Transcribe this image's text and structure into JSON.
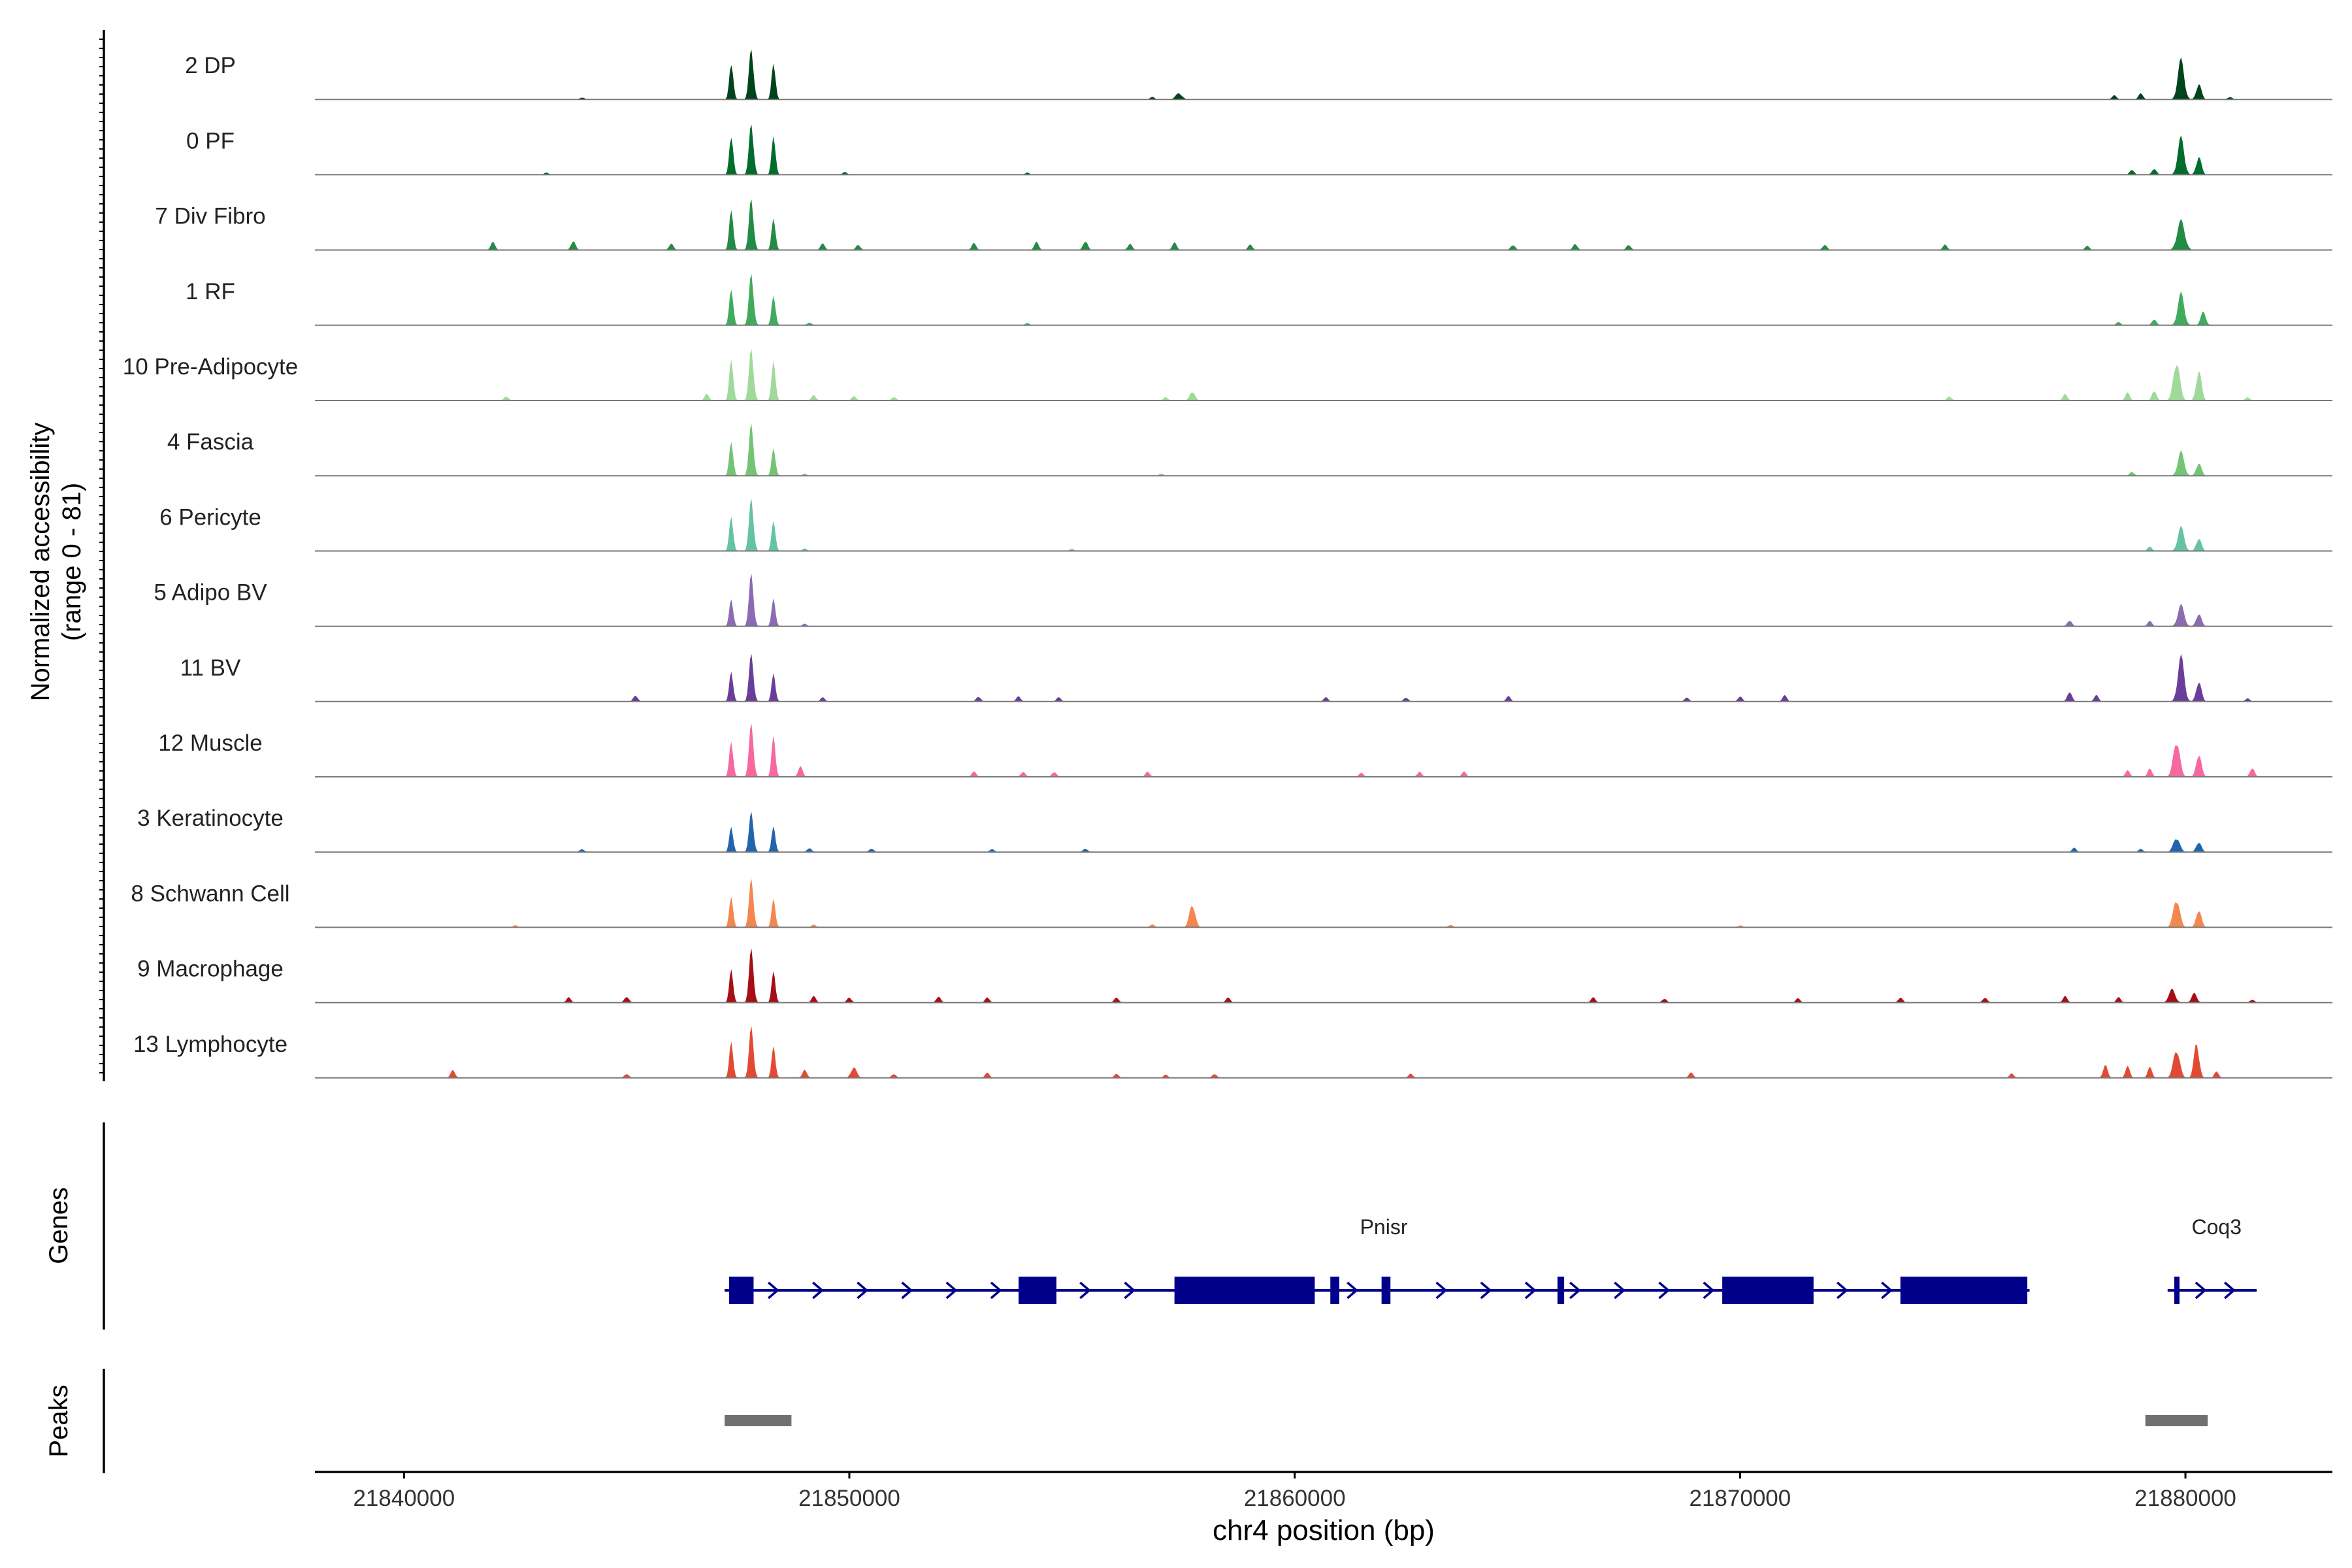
{
  "chart_data": {
    "type": "area",
    "panels": {
      "accessibility": {
        "ylabel_line1": "Normalized accessibility",
        "ylabel_line2": "(range 0 - 81)",
        "ylim": [
          0,
          81
        ]
      },
      "genes": {
        "label": "Genes"
      },
      "peaks": {
        "label": "Peaks"
      }
    },
    "xlabel": "chr4 position (bp)",
    "xlim": [
      21838000,
      21883300
    ],
    "xticks": [
      {
        "value": 21840000,
        "label": "21840000"
      },
      {
        "value": 21850000,
        "label": "21850000"
      },
      {
        "value": 21860000,
        "label": "21860000"
      },
      {
        "value": 21870000,
        "label": "21870000"
      },
      {
        "value": 21880000,
        "label": "21880000"
      }
    ],
    "series": [
      {
        "name": "2 DP",
        "color": "#00441b",
        "peaks": [
          [
            21847350,
            0.75,
            60
          ],
          [
            21847800,
            1.0,
            70
          ],
          [
            21848300,
            0.75,
            60
          ],
          [
            21857400,
            0.12,
            100
          ],
          [
            21879900,
            0.75,
            100
          ],
          [
            21880300,
            0.3,
            80
          ]
        ],
        "bumps": [
          [
            21844000,
            0.04
          ],
          [
            21856800,
            0.05
          ],
          [
            21878400,
            0.08
          ],
          [
            21879000,
            0.12
          ],
          [
            21881000,
            0.05
          ]
        ]
      },
      {
        "name": "0 PF",
        "color": "#006d2c",
        "peaks": [
          [
            21847350,
            0.8,
            60
          ],
          [
            21847800,
            1.0,
            70
          ],
          [
            21848300,
            0.8,
            60
          ],
          [
            21879900,
            0.7,
            100
          ],
          [
            21880300,
            0.35,
            80
          ]
        ],
        "bumps": [
          [
            21843200,
            0.04
          ],
          [
            21849900,
            0.05
          ],
          [
            21854000,
            0.04
          ],
          [
            21878800,
            0.1
          ],
          [
            21879300,
            0.12
          ]
        ]
      },
      {
        "name": "7 Div Fibro",
        "color": "#238b45",
        "peaks": [
          [
            21847350,
            0.85,
            60
          ],
          [
            21847800,
            1.0,
            70
          ],
          [
            21848300,
            0.65,
            60
          ],
          [
            21879900,
            0.55,
            120
          ]
        ],
        "bumps": [
          [
            21842000,
            0.15
          ],
          [
            21843800,
            0.18
          ],
          [
            21846000,
            0.12
          ],
          [
            21849400,
            0.12
          ],
          [
            21850200,
            0.1
          ],
          [
            21852800,
            0.13
          ],
          [
            21854200,
            0.15
          ],
          [
            21855300,
            0.18
          ],
          [
            21856300,
            0.12
          ],
          [
            21857300,
            0.14
          ],
          [
            21859000,
            0.1
          ],
          [
            21864900,
            0.1
          ],
          [
            21866300,
            0.12
          ],
          [
            21867500,
            0.1
          ],
          [
            21871900,
            0.1
          ],
          [
            21874600,
            0.1
          ],
          [
            21877800,
            0.08
          ]
        ]
      },
      {
        "name": "1 RF",
        "color": "#41ab5d",
        "peaks": [
          [
            21847350,
            0.75,
            60
          ],
          [
            21847800,
            1.0,
            70
          ],
          [
            21848300,
            0.6,
            60
          ],
          [
            21879900,
            0.6,
            100
          ],
          [
            21880400,
            0.25,
            80
          ]
        ],
        "bumps": [
          [
            21849100,
            0.05
          ],
          [
            21854000,
            0.04
          ],
          [
            21878500,
            0.06
          ],
          [
            21879300,
            0.12
          ]
        ]
      },
      {
        "name": "10 Pre-Adipocyte",
        "color": "#a1d99b",
        "peaks": [
          [
            21847350,
            0.85,
            60
          ],
          [
            21847800,
            1.0,
            70
          ],
          [
            21848300,
            0.8,
            60
          ],
          [
            21857700,
            0.18,
            80
          ],
          [
            21879800,
            0.75,
            100
          ],
          [
            21880300,
            0.6,
            80
          ]
        ],
        "bumps": [
          [
            21842300,
            0.08
          ],
          [
            21846800,
            0.12
          ],
          [
            21849200,
            0.1
          ],
          [
            21850100,
            0.08
          ],
          [
            21851000,
            0.07
          ],
          [
            21857100,
            0.06
          ],
          [
            21874700,
            0.08
          ],
          [
            21877300,
            0.12
          ],
          [
            21878700,
            0.15
          ],
          [
            21879300,
            0.2
          ],
          [
            21881400,
            0.06
          ]
        ]
      },
      {
        "name": "4 Fascia",
        "color": "#74c476",
        "peaks": [
          [
            21847350,
            0.7,
            60
          ],
          [
            21847800,
            1.0,
            70
          ],
          [
            21848300,
            0.55,
            60
          ],
          [
            21879900,
            0.45,
            100
          ],
          [
            21880300,
            0.25,
            80
          ]
        ],
        "bumps": [
          [
            21849000,
            0.04
          ],
          [
            21857000,
            0.04
          ],
          [
            21878800,
            0.08
          ]
        ]
      },
      {
        "name": "6 Pericyte",
        "color": "#66c2a4",
        "peaks": [
          [
            21847350,
            0.7,
            60
          ],
          [
            21847800,
            1.0,
            70
          ],
          [
            21848300,
            0.6,
            60
          ],
          [
            21879900,
            0.45,
            100
          ],
          [
            21880300,
            0.25,
            80
          ]
        ],
        "bumps": [
          [
            21849000,
            0.05
          ],
          [
            21855000,
            0.04
          ],
          [
            21879200,
            0.08
          ]
        ]
      },
      {
        "name": "5 Adipo BV",
        "color": "#8c6bb1",
        "peaks": [
          [
            21847350,
            0.55,
            60
          ],
          [
            21847800,
            1.0,
            70
          ],
          [
            21848300,
            0.55,
            60
          ],
          [
            21879900,
            0.4,
            100
          ],
          [
            21880300,
            0.25,
            80
          ]
        ],
        "bumps": [
          [
            21849000,
            0.05
          ],
          [
            21877400,
            0.12
          ],
          [
            21879200,
            0.1
          ]
        ]
      },
      {
        "name": "11 BV",
        "color": "#6a3d9a",
        "peaks": [
          [
            21847350,
            0.6,
            60
          ],
          [
            21847800,
            0.9,
            70
          ],
          [
            21848300,
            0.55,
            60
          ],
          [
            21879900,
            0.85,
            100
          ],
          [
            21880300,
            0.4,
            80
          ]
        ],
        "bumps": [
          [
            21845200,
            0.12
          ],
          [
            21849400,
            0.08
          ],
          [
            21852900,
            0.1
          ],
          [
            21853800,
            0.1
          ],
          [
            21854700,
            0.08
          ],
          [
            21860700,
            0.08
          ],
          [
            21862500,
            0.08
          ],
          [
            21864800,
            0.1
          ],
          [
            21868800,
            0.08
          ],
          [
            21870000,
            0.1
          ],
          [
            21871000,
            0.12
          ],
          [
            21877400,
            0.2
          ],
          [
            21878000,
            0.12
          ],
          [
            21881400,
            0.06
          ]
        ]
      },
      {
        "name": "12 Muscle",
        "color": "#f768a1",
        "peaks": [
          [
            21847350,
            0.7,
            60
          ],
          [
            21847800,
            1.0,
            70
          ],
          [
            21848300,
            0.8,
            60
          ],
          [
            21879800,
            0.7,
            100
          ],
          [
            21880300,
            0.45,
            80
          ]
        ],
        "bumps": [
          [
            21848900,
            0.2
          ],
          [
            21852800,
            0.1
          ],
          [
            21853900,
            0.1
          ],
          [
            21854600,
            0.1
          ],
          [
            21856700,
            0.1
          ],
          [
            21861500,
            0.08
          ],
          [
            21862800,
            0.1
          ],
          [
            21863800,
            0.1
          ],
          [
            21878700,
            0.12
          ],
          [
            21879200,
            0.15
          ],
          [
            21881500,
            0.18
          ]
        ]
      },
      {
        "name": "3 Keratinocyte",
        "color": "#2166ac",
        "peaks": [
          [
            21847350,
            0.5,
            60
          ],
          [
            21847800,
            0.75,
            70
          ],
          [
            21848300,
            0.5,
            60
          ],
          [
            21879800,
            0.28,
            100
          ],
          [
            21880300,
            0.2,
            80
          ]
        ],
        "bumps": [
          [
            21844000,
            0.06
          ],
          [
            21849100,
            0.08
          ],
          [
            21850500,
            0.07
          ],
          [
            21853200,
            0.06
          ],
          [
            21855300,
            0.07
          ],
          [
            21877500,
            0.08
          ],
          [
            21879000,
            0.06
          ]
        ]
      },
      {
        "name": "8 Schwann Cell",
        "color": "#f4874f",
        "peaks": [
          [
            21847350,
            0.6,
            60
          ],
          [
            21847800,
            0.9,
            70
          ],
          [
            21848300,
            0.55,
            60
          ],
          [
            21857700,
            0.45,
            90
          ],
          [
            21879800,
            0.55,
            100
          ],
          [
            21880300,
            0.35,
            80
          ]
        ],
        "bumps": [
          [
            21842500,
            0.04
          ],
          [
            21849200,
            0.05
          ],
          [
            21856800,
            0.06
          ],
          [
            21863500,
            0.05
          ],
          [
            21870000,
            0.04
          ]
        ]
      },
      {
        "name": "9 Macrophage",
        "color": "#a50f15",
        "peaks": [
          [
            21847350,
            0.65,
            60
          ],
          [
            21847800,
            1.0,
            70
          ],
          [
            21848300,
            0.6,
            60
          ],
          [
            21879700,
            0.25,
            100
          ],
          [
            21880200,
            0.18,
            80
          ]
        ],
        "bumps": [
          [
            21843700,
            0.1
          ],
          [
            21845000,
            0.12
          ],
          [
            21849200,
            0.12
          ],
          [
            21850000,
            0.1
          ],
          [
            21852000,
            0.12
          ],
          [
            21853100,
            0.1
          ],
          [
            21856000,
            0.1
          ],
          [
            21858500,
            0.1
          ],
          [
            21866700,
            0.1
          ],
          [
            21868300,
            0.08
          ],
          [
            21871300,
            0.08
          ],
          [
            21873600,
            0.1
          ],
          [
            21875500,
            0.1
          ],
          [
            21877300,
            0.12
          ],
          [
            21878500,
            0.1
          ],
          [
            21881500,
            0.06
          ]
        ]
      },
      {
        "name": "13 Lymphocyte",
        "color": "#e34a33",
        "peaks": [
          [
            21847350,
            0.7,
            60
          ],
          [
            21847800,
            0.95,
            70
          ],
          [
            21848300,
            0.6,
            60
          ],
          [
            21850100,
            0.2,
            90
          ],
          [
            21879800,
            0.55,
            100
          ],
          [
            21880250,
            0.68,
            80
          ]
        ],
        "bumps": [
          [
            21841100,
            0.15
          ],
          [
            21845000,
            0.08
          ],
          [
            21849000,
            0.15
          ],
          [
            21851000,
            0.08
          ],
          [
            21853100,
            0.1
          ],
          [
            21856000,
            0.08
          ],
          [
            21857100,
            0.06
          ],
          [
            21858200,
            0.08
          ],
          [
            21862600,
            0.08
          ],
          [
            21868900,
            0.1
          ],
          [
            21876100,
            0.08
          ],
          [
            21878200,
            0.25
          ],
          [
            21878700,
            0.22
          ],
          [
            21879200,
            0.2
          ],
          [
            21880700,
            0.12
          ]
        ]
      }
    ],
    "genes": [
      {
        "name": "Pnisr",
        "label_x": 21862000,
        "start": 21847200,
        "end": 21876500,
        "exons": [
          [
            21847300,
            21847850
          ],
          [
            21853800,
            21854650
          ],
          [
            21857300,
            21860450
          ],
          [
            21860800,
            21861000
          ],
          [
            21861950,
            21862150
          ],
          [
            21865900,
            21866050
          ],
          [
            21869600,
            21871650
          ],
          [
            21873600,
            21876450
          ]
        ]
      },
      {
        "name": "Coq3",
        "label_x": 21880700,
        "start": 21879600,
        "end": 21881600,
        "exons": [
          [
            21879750,
            21879850
          ]
        ]
      }
    ],
    "peaks": [
      [
        21847200,
        21848700
      ],
      [
        21879100,
        21880500
      ]
    ]
  }
}
